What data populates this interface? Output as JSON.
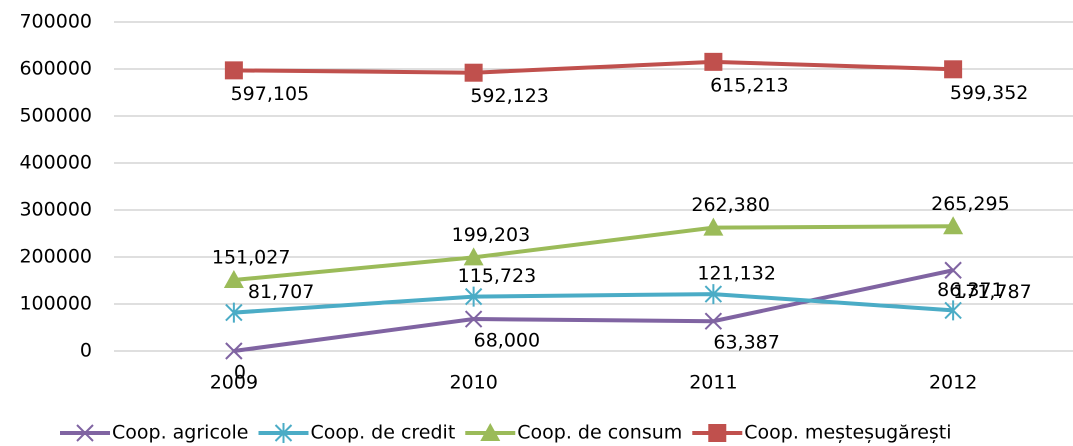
{
  "chart_data": {
    "type": "line",
    "categories": [
      "2009",
      "2010",
      "2011",
      "2012"
    ],
    "series": [
      {
        "name": "Coop. agricole",
        "color": "#8064A2",
        "marker": "x",
        "values": [
          0,
          68000,
          63387,
          171787
        ],
        "value_labels": [
          "0",
          "68,000",
          "63,387",
          "171,787"
        ]
      },
      {
        "name": "Coop. de credit",
        "color": "#4BACC6",
        "marker": "asterisk",
        "values": [
          81707,
          115723,
          121132,
          86371
        ],
        "value_labels": [
          "81,707",
          "115,723",
          "121,132",
          "86,371"
        ]
      },
      {
        "name": "Coop. de consum",
        "color": "#9BBB59",
        "marker": "triangle",
        "values": [
          151027,
          199203,
          262380,
          265295
        ],
        "value_labels": [
          "151,027",
          "199,203",
          "262,380",
          "265,295"
        ]
      },
      {
        "name": "Coop. meșteșugărești",
        "color": "#C0504D",
        "marker": "square",
        "values": [
          597105,
          592123,
          615213,
          599352
        ],
        "value_labels": [
          "597,105",
          "592,123",
          "615,213",
          "599,352"
        ]
      }
    ],
    "ylim": [
      0,
      700000
    ],
    "yticks": [
      0,
      100000,
      200000,
      300000,
      400000,
      500000,
      600000,
      700000
    ],
    "grid": true,
    "legend": "bottom"
  }
}
